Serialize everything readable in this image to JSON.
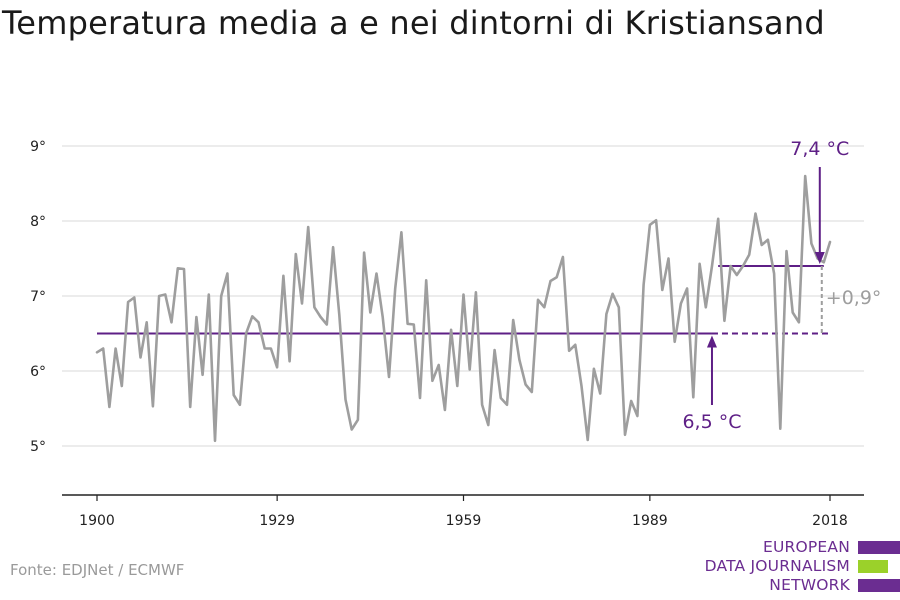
{
  "title": "Temperatura media a e nei dintorni di Kristiansand",
  "source": "Fonte: EDJNet / ECMWF",
  "logo": {
    "line1": "EUROPEAN",
    "line2": "DATA JOURNALISM",
    "line3": "NETWORK",
    "colors": [
      "#6b2d91",
      "#9bd12a",
      "#6b2d91"
    ]
  },
  "colors": {
    "series": "#9e9e9e",
    "accent": "#5e1f86",
    "grid": "#d9d9d9",
    "axis": "#222222"
  },
  "chart_data": {
    "type": "line",
    "title": "Temperatura media a e nei dintorni di Kristiansand",
    "xlabel": "",
    "ylabel": "",
    "xlim": [
      1900,
      2018
    ],
    "ylim": [
      4.3,
      9.5
    ],
    "grid": true,
    "x_ticks": [
      1900,
      1929,
      1959,
      1989,
      2018
    ],
    "x_tick_labels": [
      "1900",
      "1929",
      "1959",
      "1989",
      "2018"
    ],
    "y_ticks": [
      5,
      6,
      7,
      8,
      9
    ],
    "y_tick_labels": [
      "5°",
      "6°",
      "7°",
      "8°",
      "9°"
    ],
    "x": [
      1900,
      1901,
      1902,
      1903,
      1904,
      1905,
      1906,
      1907,
      1908,
      1909,
      1910,
      1911,
      1912,
      1913,
      1914,
      1915,
      1916,
      1917,
      1918,
      1919,
      1920,
      1921,
      1922,
      1923,
      1924,
      1925,
      1926,
      1927,
      1928,
      1929,
      1930,
      1931,
      1932,
      1933,
      1934,
      1935,
      1936,
      1937,
      1938,
      1939,
      1940,
      1941,
      1942,
      1943,
      1944,
      1945,
      1946,
      1947,
      1948,
      1949,
      1950,
      1951,
      1952,
      1953,
      1954,
      1955,
      1956,
      1957,
      1958,
      1959,
      1960,
      1961,
      1962,
      1963,
      1964,
      1965,
      1966,
      1967,
      1968,
      1969,
      1970,
      1971,
      1972,
      1973,
      1974,
      1975,
      1976,
      1977,
      1978,
      1979,
      1980,
      1981,
      1982,
      1983,
      1984,
      1985,
      1986,
      1987,
      1988,
      1989,
      1990,
      1991,
      1992,
      1993,
      1994,
      1995,
      1996,
      1997,
      1998,
      1999,
      2000,
      2001,
      2002,
      2003,
      2004,
      2005,
      2006,
      2007,
      2008,
      2009,
      2010,
      2011,
      2012,
      2013,
      2014,
      2015,
      2016,
      2017,
      2018
    ],
    "series": [
      {
        "values": [
          6.25,
          6.3,
          5.52,
          6.3,
          5.8,
          6.92,
          6.98,
          6.18,
          6.65,
          5.53,
          7.0,
          7.02,
          6.65,
          7.37,
          7.36,
          5.52,
          6.72,
          5.95,
          7.02,
          5.07,
          7.0,
          7.3,
          5.68,
          5.55,
          6.5,
          6.73,
          6.65,
          6.3,
          6.3,
          6.05,
          7.27,
          6.13,
          7.56,
          6.9,
          7.92,
          6.85,
          6.72,
          6.62,
          7.65,
          6.75,
          5.62,
          5.22,
          5.35,
          7.58,
          6.78,
          7.3,
          6.72,
          5.92,
          7.1,
          7.85,
          6.63,
          6.62,
          5.64,
          7.21,
          5.87,
          6.08,
          5.48,
          6.55,
          5.8,
          7.02,
          6.02,
          7.05,
          5.55,
          5.28,
          6.28,
          5.64,
          5.55,
          6.68,
          6.15,
          5.82,
          5.72,
          6.95,
          6.85,
          7.2,
          7.25,
          7.52,
          6.27,
          6.35,
          5.8,
          5.08,
          6.03,
          5.7,
          6.76,
          7.03,
          6.85,
          5.15,
          5.6,
          5.4,
          7.15,
          7.95,
          8.01,
          7.08,
          7.5,
          6.39,
          6.9,
          7.1,
          5.65,
          7.43,
          6.85,
          7.4,
          8.03,
          6.67,
          7.4,
          7.28,
          7.4,
          7.55,
          8.1,
          7.68,
          7.75,
          7.3,
          5.23,
          7.6,
          6.78,
          6.65,
          8.6,
          7.7,
          7.5,
          7.45,
          7.72
        ]
      }
    ],
    "reference_lines": [
      {
        "label": "6,5 °C",
        "value": 6.5,
        "from": 1900,
        "to": 2018,
        "solid_to": 1999
      },
      {
        "label": "7,4 °C",
        "value": 7.4,
        "from": 2000,
        "to": 2017
      }
    ],
    "annotations": [
      {
        "text": "7,4 °C",
        "x": 2017,
        "y": 7.4
      },
      {
        "text": "6,5 °C",
        "x": 1999,
        "y": 6.5
      },
      {
        "text": "+0,9°",
        "x": 2017,
        "from": 6.5,
        "to": 7.4
      }
    ]
  }
}
